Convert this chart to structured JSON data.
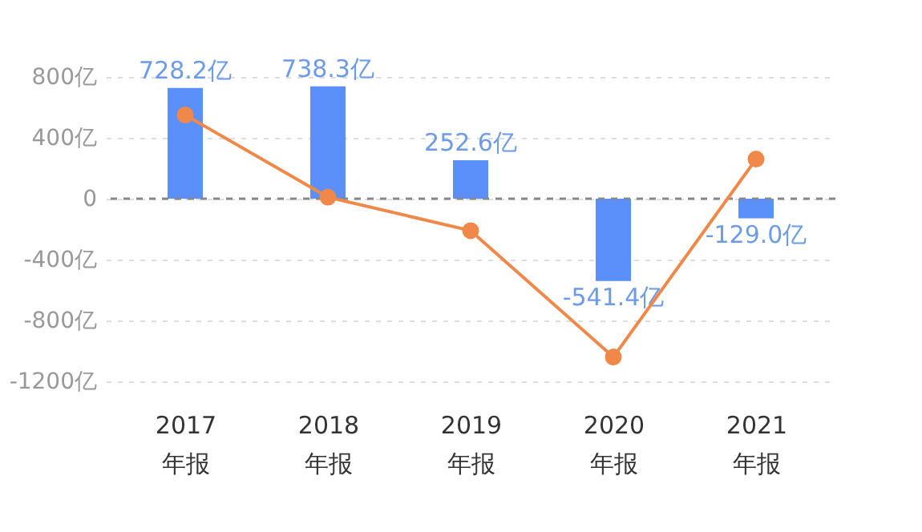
{
  "chart_data": {
    "type": "bar",
    "categories": [
      "2017\n年报",
      "2018\n年报",
      "2019\n年报",
      "2020\n年报",
      "2021\n年报"
    ],
    "series": [
      {
        "color": "#5b8ff9",
        "values": [
          728.2,
          738.3,
          252.6,
          -541.4,
          -129.0
        ],
        "value_labels": [
          "728.2亿",
          "738.3亿",
          "252.6亿",
          "-541.4亿",
          "-129.0亿"
        ]
      },
      {
        "type": "line",
        "color": "#f0884a",
        "values": [
          550,
          10,
          -210,
          -1040,
          260
        ],
        "marker": "circle",
        "line_style": "solid"
      }
    ],
    "ylim": [
      -1200,
      800
    ],
    "yticks": [
      {
        "value": -1200,
        "label": "-1200亿"
      },
      {
        "value": -800,
        "label": "-800亿"
      },
      {
        "value": -400,
        "label": "-400亿"
      },
      0,
      {
        "value": 400,
        "label": "400亿"
      },
      {
        "value": 800,
        "label": "800亿"
      }
    ],
    "ref_lines": [
      {
        "axis": "y",
        "value": 0,
        "color": "#888888",
        "line_style": "dashed"
      }
    ],
    "grid": "y"
  }
}
